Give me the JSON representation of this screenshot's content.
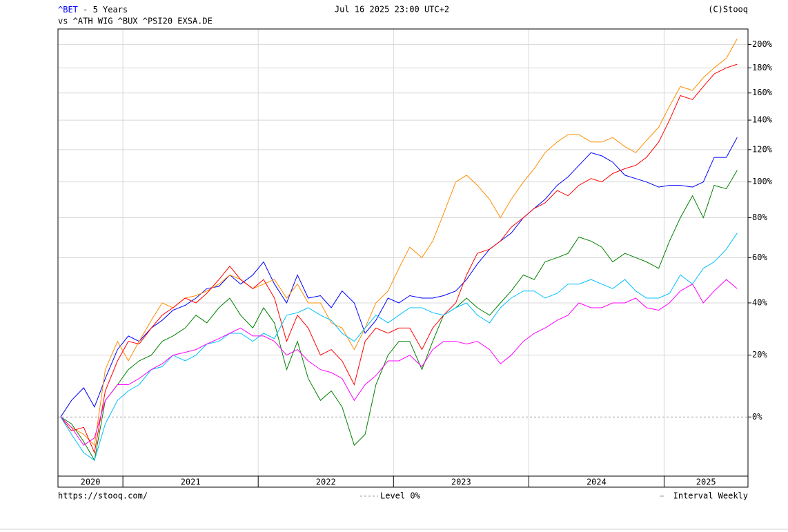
{
  "chart_data": {
    "type": "line",
    "title": "- 5 Years",
    "date": "Jul 16 2025 23:00 UTC+2",
    "credit": "(C)Stooq",
    "compare_label": "vs",
    "source": "https://stooq.com/",
    "interval": "Interval Weekly",
    "reference_line": {
      "value": 0,
      "label": "Level 0%"
    },
    "log_scale": true,
    "grid": true,
    "xlim": [
      2020.52,
      2025.62
    ],
    "xticks": [
      2020,
      2021,
      2022,
      2023,
      2024,
      2025
    ],
    "ylim": [
      -16,
      214
    ],
    "yticks": [
      {
        "value": 0,
        "label": "0%"
      },
      {
        "value": 20,
        "label": "20%"
      },
      {
        "value": 40,
        "label": "40%"
      },
      {
        "value": 60,
        "label": "60%"
      },
      {
        "value": 80,
        "label": "80%"
      },
      {
        "value": 100,
        "label": "100%"
      },
      {
        "value": 120,
        "label": "120%"
      },
      {
        "value": 140,
        "label": "140%"
      },
      {
        "value": 160,
        "label": "160%"
      },
      {
        "value": 180,
        "label": "180%"
      },
      {
        "value": 200,
        "label": "200%"
      }
    ],
    "x": [
      2020.54,
      2020.62,
      2020.71,
      2020.79,
      2020.87,
      2020.96,
      2021.04,
      2021.12,
      2021.21,
      2021.29,
      2021.37,
      2021.46,
      2021.54,
      2021.62,
      2021.71,
      2021.79,
      2021.87,
      2021.96,
      2022.04,
      2022.12,
      2022.21,
      2022.29,
      2022.37,
      2022.46,
      2022.54,
      2022.62,
      2022.71,
      2022.79,
      2022.87,
      2022.96,
      2023.04,
      2023.12,
      2023.21,
      2023.29,
      2023.37,
      2023.46,
      2023.54,
      2023.62,
      2023.71,
      2023.79,
      2023.87,
      2023.96,
      2024.04,
      2024.12,
      2024.21,
      2024.29,
      2024.37,
      2024.46,
      2024.54,
      2024.62,
      2024.71,
      2024.79,
      2024.87,
      2024.96,
      2025.04,
      2025.12,
      2025.21,
      2025.29,
      2025.37,
      2025.46,
      2025.54
    ],
    "series": [
      {
        "name": "^BET",
        "color": "#0000ff",
        "values": [
          0,
          5,
          9,
          3,
          12,
          22,
          27,
          25,
          30,
          33,
          37,
          39,
          42,
          46,
          47,
          52,
          48,
          52,
          58,
          48,
          40,
          52,
          42,
          43,
          38,
          45,
          40,
          28,
          33,
          42,
          40,
          43,
          42,
          42,
          43,
          45,
          50,
          57,
          64,
          68,
          72,
          80,
          85,
          90,
          98,
          103,
          110,
          118,
          116,
          112,
          104,
          102,
          100,
          97,
          98,
          98,
          97,
          100,
          115,
          115,
          128
        ]
      },
      {
        "name": "^ATH",
        "color": "#ff8c00",
        "values": [
          0,
          -3,
          -5,
          -8,
          15,
          25,
          18,
          25,
          33,
          40,
          38,
          42,
          43,
          45,
          48,
          52,
          50,
          46,
          48,
          50,
          42,
          48,
          40,
          40,
          32,
          30,
          22,
          30,
          40,
          45,
          55,
          65,
          60,
          68,
          82,
          100,
          104,
          98,
          90,
          80,
          90,
          100,
          108,
          118,
          125,
          130,
          130,
          125,
          125,
          128,
          122,
          118,
          126,
          135,
          150,
          165,
          162,
          172,
          180,
          188,
          205
        ]
      },
      {
        "name": "WIG",
        "color": "#008000",
        "values": [
          0,
          -2,
          -7,
          -12,
          5,
          10,
          15,
          18,
          20,
          25,
          27,
          30,
          35,
          32,
          38,
          42,
          35,
          30,
          38,
          32,
          15,
          25,
          12,
          5,
          8,
          3,
          -8,
          -5,
          10,
          20,
          25,
          25,
          15,
          25,
          35,
          38,
          42,
          38,
          35,
          40,
          45,
          52,
          50,
          58,
          60,
          62,
          70,
          68,
          65,
          58,
          62,
          60,
          58,
          55,
          68,
          80,
          92,
          80,
          98,
          96,
          107
        ]
      },
      {
        "name": "^BUX",
        "color": "#ff0000",
        "values": [
          0,
          -4,
          -3,
          -10,
          8,
          18,
          25,
          24,
          30,
          35,
          38,
          42,
          40,
          44,
          50,
          56,
          50,
          46,
          50,
          42,
          25,
          35,
          30,
          20,
          22,
          18,
          10,
          25,
          30,
          28,
          30,
          30,
          22,
          30,
          35,
          40,
          52,
          62,
          64,
          68,
          75,
          80,
          85,
          88,
          95,
          92,
          98,
          102,
          100,
          105,
          108,
          110,
          115,
          125,
          140,
          158,
          155,
          165,
          175,
          180,
          183
        ]
      },
      {
        "name": "^PSI20",
        "color": "#00bfff",
        "values": [
          0,
          -5,
          -10,
          -12,
          -2,
          5,
          8,
          10,
          15,
          16,
          20,
          18,
          20,
          24,
          25,
          28,
          28,
          25,
          28,
          26,
          35,
          36,
          38,
          35,
          33,
          28,
          25,
          30,
          35,
          32,
          35,
          38,
          38,
          36,
          35,
          38,
          40,
          35,
          32,
          38,
          42,
          45,
          45,
          42,
          44,
          48,
          48,
          50,
          48,
          46,
          50,
          45,
          42,
          42,
          44,
          52,
          48,
          55,
          58,
          64,
          72
        ]
      },
      {
        "name": "EXSA.DE",
        "color": "#ff00ff",
        "values": [
          0,
          -3,
          -8,
          -6,
          5,
          10,
          10,
          12,
          15,
          17,
          20,
          21,
          22,
          24,
          26,
          28,
          30,
          27,
          27,
          25,
          20,
          22,
          18,
          15,
          14,
          12,
          5,
          10,
          13,
          18,
          18,
          20,
          16,
          22,
          25,
          25,
          24,
          25,
          22,
          17,
          20,
          25,
          28,
          30,
          33,
          35,
          40,
          38,
          38,
          40,
          40,
          42,
          38,
          37,
          40,
          45,
          48,
          40,
          45,
          50,
          46
        ]
      }
    ]
  }
}
